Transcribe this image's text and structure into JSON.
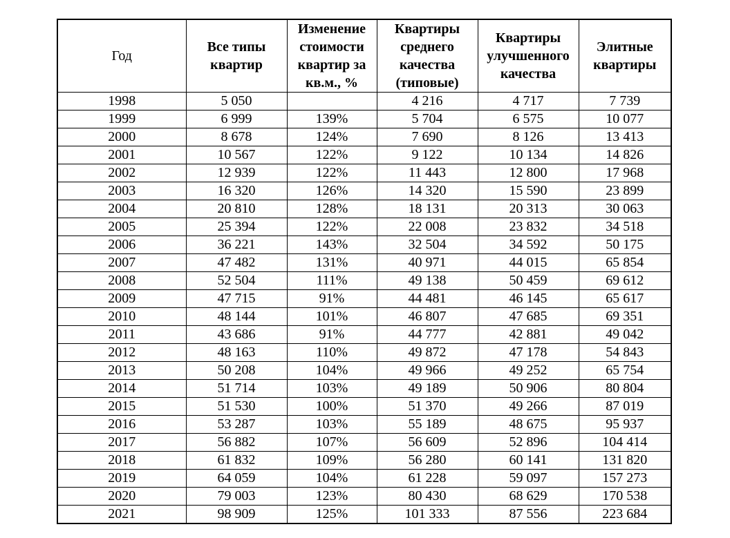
{
  "colors": {
    "background": "#ffffff",
    "border": "#000000",
    "text": "#000000"
  },
  "table": {
    "columns": [
      "Год",
      "Все типы квартир",
      "Изменение стоимости квартир за кв.м., %",
      "Квартиры среднего качества (типовые)",
      "Квартиры улучшенного качества",
      "Элитные квартиры"
    ],
    "rows": [
      [
        "1998",
        "5 050",
        "",
        "4 216",
        "4 717",
        "7 739"
      ],
      [
        "1999",
        "6 999",
        "139%",
        "5 704",
        "6 575",
        "10 077"
      ],
      [
        "2000",
        "8 678",
        "124%",
        "7 690",
        "8 126",
        "13 413"
      ],
      [
        "2001",
        "10 567",
        "122%",
        "9 122",
        "10 134",
        "14 826"
      ],
      [
        "2002",
        "12 939",
        "122%",
        "11 443",
        "12 800",
        "17 968"
      ],
      [
        "2003",
        "16 320",
        "126%",
        "14 320",
        "15 590",
        "23 899"
      ],
      [
        "2004",
        "20 810",
        "128%",
        "18 131",
        "20 313",
        "30 063"
      ],
      [
        "2005",
        "25 394",
        "122%",
        "22 008",
        "23 832",
        "34 518"
      ],
      [
        "2006",
        "36 221",
        "143%",
        "32 504",
        "34 592",
        "50 175"
      ],
      [
        "2007",
        "47 482",
        "131%",
        "40 971",
        "44 015",
        "65 854"
      ],
      [
        "2008",
        "52 504",
        "111%",
        "49 138",
        "50 459",
        "69 612"
      ],
      [
        "2009",
        "47 715",
        "91%",
        "44 481",
        "46 145",
        "65 617"
      ],
      [
        "2010",
        "48 144",
        "101%",
        "46 807",
        "47 685",
        "69 351"
      ],
      [
        "2011",
        "43 686",
        "91%",
        "44 777",
        "42 881",
        "49 042"
      ],
      [
        "2012",
        "48 163",
        "110%",
        "49 872",
        "47 178",
        "54 843"
      ],
      [
        "2013",
        "50 208",
        "104%",
        "49 966",
        "49 252",
        "65 754"
      ],
      [
        "2014",
        "51 714",
        "103%",
        "49 189",
        "50 906",
        "80 804"
      ],
      [
        "2015",
        "51 530",
        "100%",
        "51 370",
        "49 266",
        "87 019"
      ],
      [
        "2016",
        "53 287",
        "103%",
        "55 189",
        "48 675",
        "95 937"
      ],
      [
        "2017",
        "56 882",
        "107%",
        "56 609",
        "52 896",
        "104 414"
      ],
      [
        "2018",
        "61 832",
        "109%",
        "56 280",
        "60 141",
        "131 820"
      ],
      [
        "2019",
        "64 059",
        "104%",
        "61 228",
        "59 097",
        "157 273"
      ],
      [
        "2020",
        "79 003",
        "123%",
        "80 430",
        "68 629",
        "170 538"
      ],
      [
        "2021",
        "98 909",
        "125%",
        "101 333",
        "87 556",
        "223 684"
      ]
    ]
  }
}
